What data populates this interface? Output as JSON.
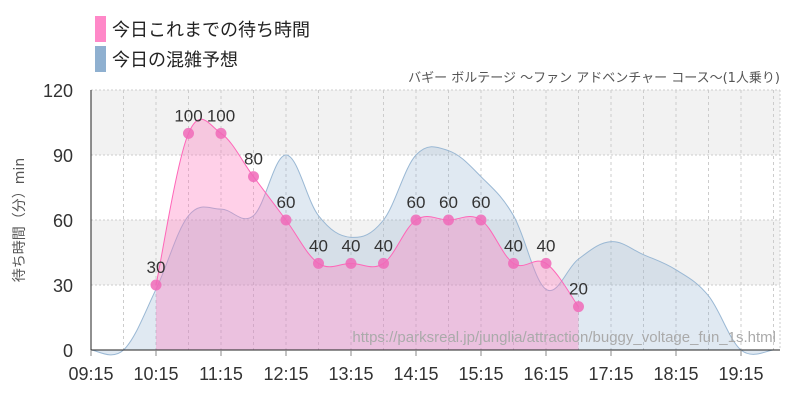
{
  "chart_data": {
    "type": "area",
    "title": "バギー ボルテージ 〜ファン アドベンチャー コース〜(1人乗り)",
    "ylabel": "待ち時間（分）min",
    "ylim": [
      0,
      120
    ],
    "yticks": [
      0,
      30,
      60,
      90,
      120
    ],
    "xticks": [
      "09:15",
      "10:15",
      "11:15",
      "12:15",
      "13:15",
      "14:15",
      "15:15",
      "16:15",
      "17:15",
      "18:15",
      "19:15"
    ],
    "xlim": [
      "09:15",
      "19:50"
    ],
    "grid": true,
    "legend_position": "top-left",
    "watermark": "https://parksreal.jp/junglia/attraction/buggy_voltage_fun_1s.html",
    "series": [
      {
        "name": "今日これまでの待ち時間",
        "color": "#ff88c8",
        "x": [
          "10:15",
          "10:45",
          "11:15",
          "11:45",
          "12:15",
          "12:45",
          "13:15",
          "13:45",
          "14:15",
          "14:45",
          "15:15",
          "15:45",
          "16:15",
          "16:45"
        ],
        "values": [
          30,
          100,
          100,
          80,
          60,
          40,
          40,
          40,
          60,
          60,
          60,
          40,
          40,
          20
        ],
        "data_labels": [
          "30",
          "100",
          "100",
          "80",
          "60",
          "40",
          "40",
          "40",
          "60",
          "60",
          "60",
          "40",
          "40",
          "20"
        ]
      },
      {
        "name": "今日の混雑予想",
        "color": "#8fb0d0",
        "x": [
          "09:15",
          "09:45",
          "10:15",
          "10:45",
          "11:15",
          "11:45",
          "12:15",
          "12:45",
          "13:15",
          "13:45",
          "14:15",
          "14:45",
          "15:15",
          "15:45",
          "16:15",
          "16:45",
          "17:15",
          "17:45",
          "18:15",
          "18:45",
          "19:15",
          "19:45"
        ],
        "values": [
          0,
          0,
          28,
          62,
          65,
          62,
          90,
          62,
          52,
          60,
          90,
          92,
          80,
          62,
          28,
          42,
          50,
          44,
          37,
          25,
          0,
          0
        ]
      }
    ]
  }
}
